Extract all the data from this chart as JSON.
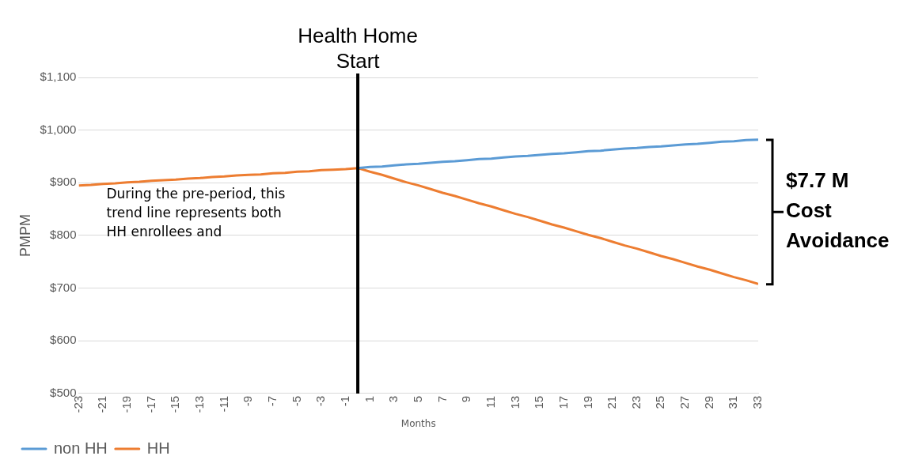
{
  "chart_data": {
    "type": "line",
    "xlabel": "Months",
    "ylabel": "PMPM",
    "x": [
      -23,
      -22,
      -21,
      -20,
      -19,
      -18,
      -17,
      -16,
      -15,
      -14,
      -13,
      -12,
      -11,
      -10,
      -9,
      -8,
      -7,
      -6,
      -5,
      -4,
      -3,
      -2,
      -1,
      0,
      1,
      2,
      3,
      4,
      5,
      6,
      7,
      8,
      9,
      10,
      11,
      12,
      13,
      14,
      15,
      16,
      17,
      18,
      19,
      20,
      21,
      22,
      23,
      24,
      25,
      26,
      27,
      28,
      29,
      30,
      31,
      32,
      33
    ],
    "xlim": [
      -23,
      33
    ],
    "xticks": [
      -23,
      -21,
      -19,
      -17,
      -15,
      -13,
      -11,
      -9,
      -7,
      -5,
      -3,
      -1,
      1,
      3,
      5,
      7,
      9,
      11,
      13,
      15,
      17,
      19,
      21,
      23,
      25,
      27,
      29,
      31,
      33
    ],
    "series": [
      {
        "name": "non HH",
        "color": "#5b9bd5",
        "values": [
          null,
          null,
          null,
          null,
          null,
          null,
          null,
          null,
          null,
          null,
          null,
          null,
          null,
          null,
          null,
          null,
          null,
          null,
          null,
          null,
          null,
          null,
          null,
          928,
          930,
          931,
          933,
          935,
          936,
          938,
          940,
          941,
          943,
          945,
          946,
          948,
          950,
          951,
          953,
          955,
          956,
          958,
          960,
          961,
          963,
          965,
          966,
          968,
          969,
          971,
          973,
          974,
          976,
          978,
          979,
          981,
          982
        ]
      },
      {
        "name": "HH",
        "color": "#ed7d31",
        "values": [
          895,
          896,
          898,
          899,
          901,
          902,
          904,
          905,
          906,
          908,
          909,
          911,
          912,
          914,
          915,
          916,
          918,
          919,
          921,
          922,
          924,
          925,
          926,
          928,
          921,
          915,
          908,
          901,
          895,
          888,
          881,
          875,
          868,
          861,
          855,
          848,
          841,
          835,
          828,
          821,
          815,
          808,
          801,
          795,
          788,
          781,
          775,
          768,
          761,
          755,
          748,
          741,
          735,
          728,
          721,
          715,
          708
        ]
      }
    ],
    "ylim": [
      500,
      1100
    ],
    "yticks": [
      {
        "value": 500,
        "label": "$500"
      },
      {
        "value": 600,
        "label": "$600"
      },
      {
        "value": 700,
        "label": "$700"
      },
      {
        "value": 800,
        "label": "$800"
      },
      {
        "value": 900,
        "label": "$900"
      },
      {
        "value": 1000,
        "label": "$1,000"
      },
      {
        "value": 1100,
        "label": "$1,100"
      }
    ],
    "grid": "y",
    "legend": "bottom left",
    "marker": "none",
    "line_style": "solid",
    "ref_lines": [
      {
        "axis": "x",
        "value": 0,
        "label": "Health Home Start",
        "color": "#000000"
      }
    ],
    "annotations": [
      "During the pre-period, this trend line represents both HH enrollees and",
      "$7.7 M Cost Avoidance"
    ]
  }
}
